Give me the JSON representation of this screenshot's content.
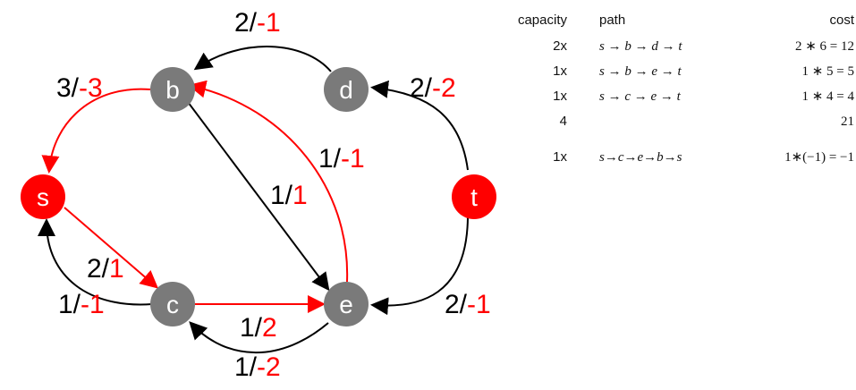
{
  "diagram": {
    "nodes": {
      "s": {
        "label": "s",
        "color": "#ff0000"
      },
      "b": {
        "label": "b",
        "color": "#7a7a7a"
      },
      "d": {
        "label": "d",
        "color": "#7a7a7a"
      },
      "t": {
        "label": "t",
        "color": "#ff0000"
      },
      "c": {
        "label": "c",
        "color": "#7a7a7a"
      },
      "e": {
        "label": "e",
        "color": "#7a7a7a"
      }
    },
    "edges": [
      {
        "from": "d",
        "to": "b",
        "label_left": "2/",
        "label_right": "-1"
      },
      {
        "from": "t",
        "to": "d",
        "label_left": "2/",
        "label_right": "-2"
      },
      {
        "from": "b",
        "to": "s",
        "label_left": "3/",
        "label_right": "-3"
      },
      {
        "from": "e",
        "to": "b",
        "label_left": "1/",
        "label_right": "-1"
      },
      {
        "from": "b",
        "to": "e",
        "label_left": "1/",
        "label_right": "1"
      },
      {
        "from": "s",
        "to": "c",
        "label_left": "2/",
        "label_right": "1"
      },
      {
        "from": "c",
        "to": "s",
        "label_left": "1/",
        "label_right": "-1"
      },
      {
        "from": "c",
        "to": "e",
        "label_left": "1/",
        "label_right": "2"
      },
      {
        "from": "e",
        "to": "c",
        "label_left": "1/",
        "label_right": "-2"
      },
      {
        "from": "t",
        "to": "e",
        "label_left": "2/",
        "label_right": "-1"
      }
    ],
    "colors": {
      "black": "#000000",
      "red": "#ff0000",
      "gray": "#7a7a7a"
    }
  },
  "table": {
    "headers": {
      "capacity": "capacity",
      "path": "path",
      "cost": "cost"
    },
    "rows": [
      {
        "capacity": "2x",
        "path": "s → b → d → t",
        "cost": "2 ∗ 6 = 12"
      },
      {
        "capacity": "1x",
        "path": "s → b → e → t",
        "cost": "1 ∗ 5 = 5"
      },
      {
        "capacity": "1x",
        "path": "s → c → e → t",
        "cost": "1 ∗ 4 = 4"
      },
      {
        "capacity": "4",
        "path": "",
        "cost": "21"
      }
    ],
    "extra_row": {
      "capacity": "1x",
      "path": "s→c→e→b→s",
      "cost": "1∗(−1) = −1"
    }
  }
}
